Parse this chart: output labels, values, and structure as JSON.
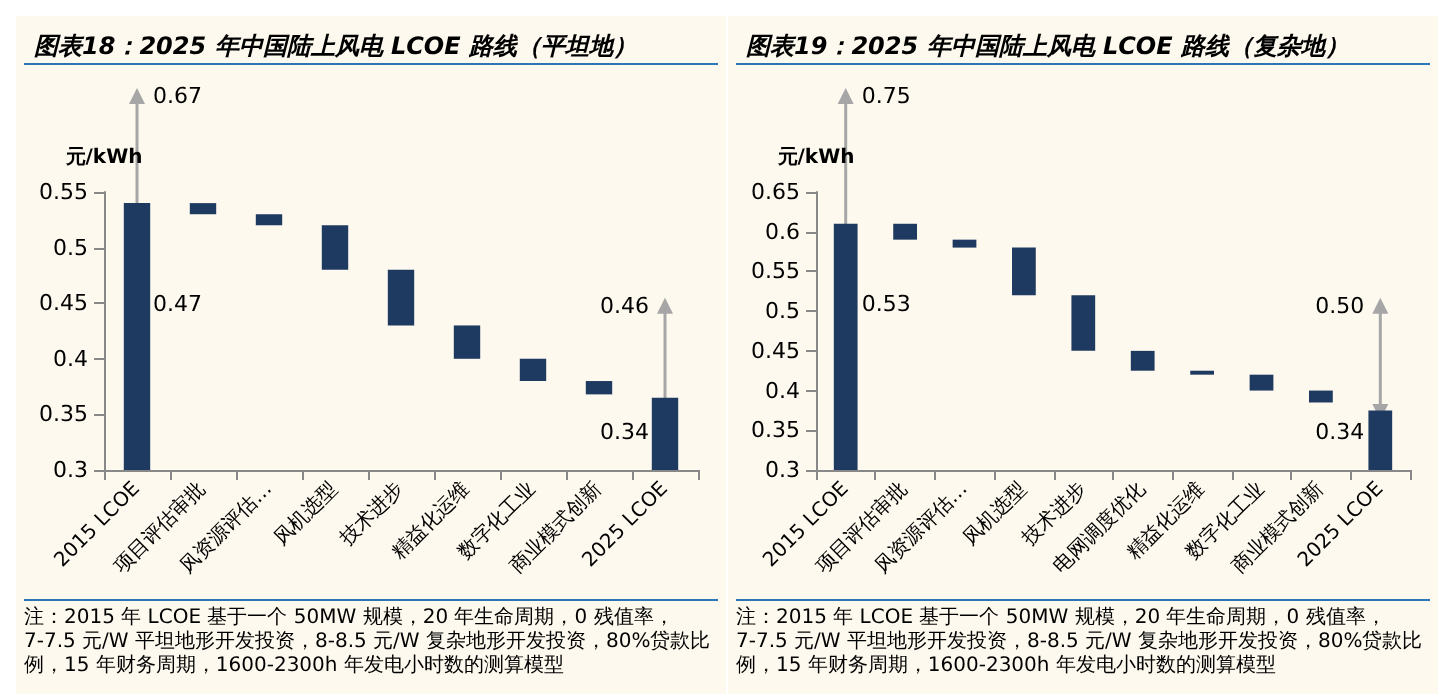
{
  "chart_data": [
    {
      "type": "bar",
      "title": "图表18：2025 年中国陆上风电 LCOE 路线（平坦地）",
      "ylabel": "元/kWh",
      "categories": [
        "2015 LCOE",
        "项目评估审批",
        "风资源评估…",
        "风机选型",
        "技术进步",
        "精益化运维",
        "数字化工业",
        "商业模式创新",
        "2025 LCOE"
      ],
      "base": [
        0.3,
        0.53,
        0.52,
        0.48,
        0.43,
        0.4,
        0.38,
        0.368,
        0.3
      ],
      "values": [
        0.24,
        0.01,
        0.01,
        0.04,
        0.05,
        0.03,
        0.02,
        0.012,
        0.065
      ],
      "color": "#1f3a60",
      "ylim": [
        0.3,
        0.55
      ],
      "yticks": [
        0.3,
        0.35,
        0.4,
        0.45,
        0.5,
        0.55
      ],
      "grid": false,
      "annotations": [
        "0.67",
        "0.47",
        "0.46",
        "0.34",
        "注：2015 年 LCOE 基于一个 50MW 规模，20 年生命周期，0 残值率，7-7.5 元/W 平坦地形开发投资，8-8.5 元/W 复杂地形开发投资，80%贷款比例，15 年财务周期，1600-2300h 年发电小时数的测算模型"
      ]
    },
    {
      "type": "bar",
      "title": "图表19：2025 年中国陆上风电 LCOE 路线（复杂地）",
      "ylabel": "元/kWh",
      "categories": [
        "2015 LCOE",
        "项目评估审批",
        "风资源评估…",
        "风机选型",
        "技术进步",
        "电网调度优化",
        "精益化运维",
        "数字化工业",
        "商业模式创新",
        "2025 LCOE"
      ],
      "base": [
        0.3,
        0.59,
        0.58,
        0.52,
        0.45,
        0.425,
        0.42,
        0.4,
        0.385,
        0.3
      ],
      "values": [
        0.31,
        0.02,
        0.01,
        0.06,
        0.07,
        0.025,
        0.005,
        0.02,
        0.015,
        0.075
      ],
      "color": "#1f3a60",
      "ylim": [
        0.3,
        0.65
      ],
      "yticks": [
        0.3,
        0.35,
        0.4,
        0.45,
        0.5,
        0.55,
        0.6,
        0.65
      ],
      "grid": false,
      "annotations": [
        "0.75",
        "0.53",
        "0.50",
        "0.34",
        "注：2015 年 LCOE 基于一个 50MW 规模，20 年生命周期，0 残值率，7-7.5 元/W 平坦地形开发投资，8-8.5 元/W 复杂地形开发投资，80%贷款比例，15 年财务周期，1600-2300h 年发电小时数的测算模型"
      ]
    }
  ]
}
